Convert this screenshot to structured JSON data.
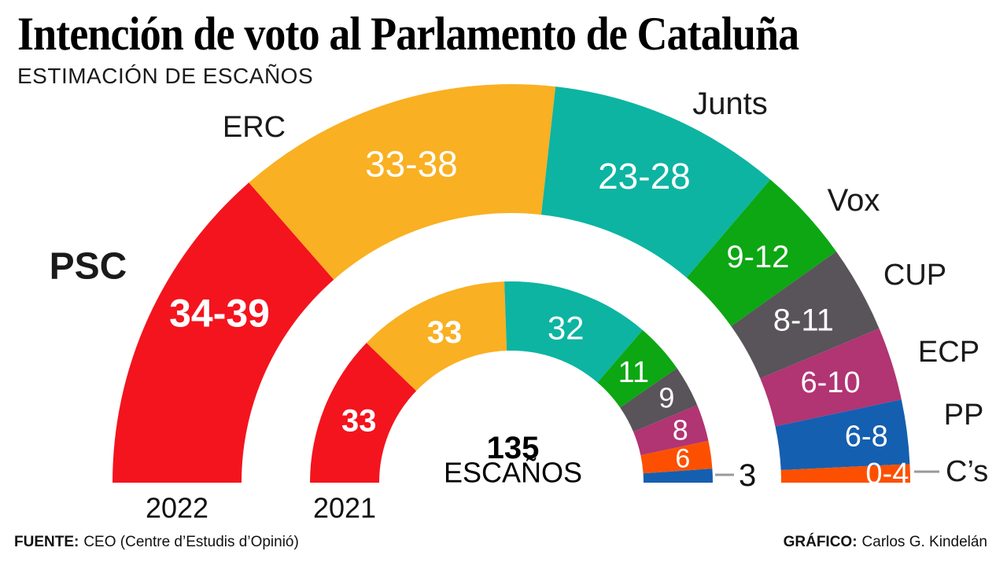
{
  "header": {
    "title": "Intención de voto al Parlamento de Cataluña",
    "subtitle": "ESTIMACIÓN DE ESCAÑOS"
  },
  "footer": {
    "source_label": "FUENTE:",
    "source_text": "CEO (Centre d’Estudis d’Opinió)",
    "credit_label": "GRÁFICO:",
    "credit_text": "Carlos G. Kindelán"
  },
  "chart_data": {
    "type": "hemicycle",
    "title": "Intención de voto al Parlamento de Cataluña",
    "subtitle": "ESTIMACIÓN DE ESCAÑOS",
    "total_seats": 135,
    "total_label": {
      "value": "135",
      "unit": "ESCAÑOS"
    },
    "legend_position": "around-arc",
    "parties": [
      {
        "id": "psc",
        "name": "PSC",
        "color": "#f3141e"
      },
      {
        "id": "erc",
        "name": "ERC",
        "color": "#f9b022"
      },
      {
        "id": "junts",
        "name": "Junts",
        "color": "#0db4a2"
      },
      {
        "id": "vox",
        "name": "Vox",
        "color": "#0ca713"
      },
      {
        "id": "cup",
        "name": "CUP",
        "color": "#585459"
      },
      {
        "id": "ecp",
        "name": "ECP",
        "color": "#b13473"
      },
      {
        "id": "pp",
        "name": "PP",
        "color": "#155fb0"
      },
      {
        "id": "cs",
        "name": "C’s",
        "color": "#fc5000"
      }
    ],
    "rings": [
      {
        "year": "2022",
        "position": "outer",
        "segments": [
          {
            "party": "psc",
            "label": "34-39",
            "min": 34,
            "max": 39,
            "bold": true
          },
          {
            "party": "erc",
            "label": "33-38",
            "min": 33,
            "max": 38
          },
          {
            "party": "junts",
            "label": "23-28",
            "min": 23,
            "max": 28
          },
          {
            "party": "vox",
            "label": "9-12",
            "min": 9,
            "max": 12
          },
          {
            "party": "cup",
            "label": "8-11",
            "min": 8,
            "max": 11
          },
          {
            "party": "ecp",
            "label": "6-10",
            "min": 6,
            "max": 10
          },
          {
            "party": "pp",
            "label": "6-8",
            "min": 6,
            "max": 8
          },
          {
            "party": "cs",
            "label": "0-4",
            "min": 0,
            "max": 4
          }
        ]
      },
      {
        "year": "2021",
        "position": "inner",
        "segments": [
          {
            "party": "psc",
            "label": "33",
            "value": 33,
            "bold": true
          },
          {
            "party": "erc",
            "label": "33",
            "value": 33,
            "bold": true
          },
          {
            "party": "junts",
            "label": "32",
            "value": 32
          },
          {
            "party": "vox",
            "label": "11",
            "value": 11
          },
          {
            "party": "cup",
            "label": "9",
            "value": 9
          },
          {
            "party": "ecp",
            "label": "8",
            "value": 8
          },
          {
            "party": "cs",
            "label": "6",
            "value": 6
          },
          {
            "party": "pp",
            "label": "3",
            "value": 3,
            "label_outside": true
          }
        ]
      }
    ]
  }
}
